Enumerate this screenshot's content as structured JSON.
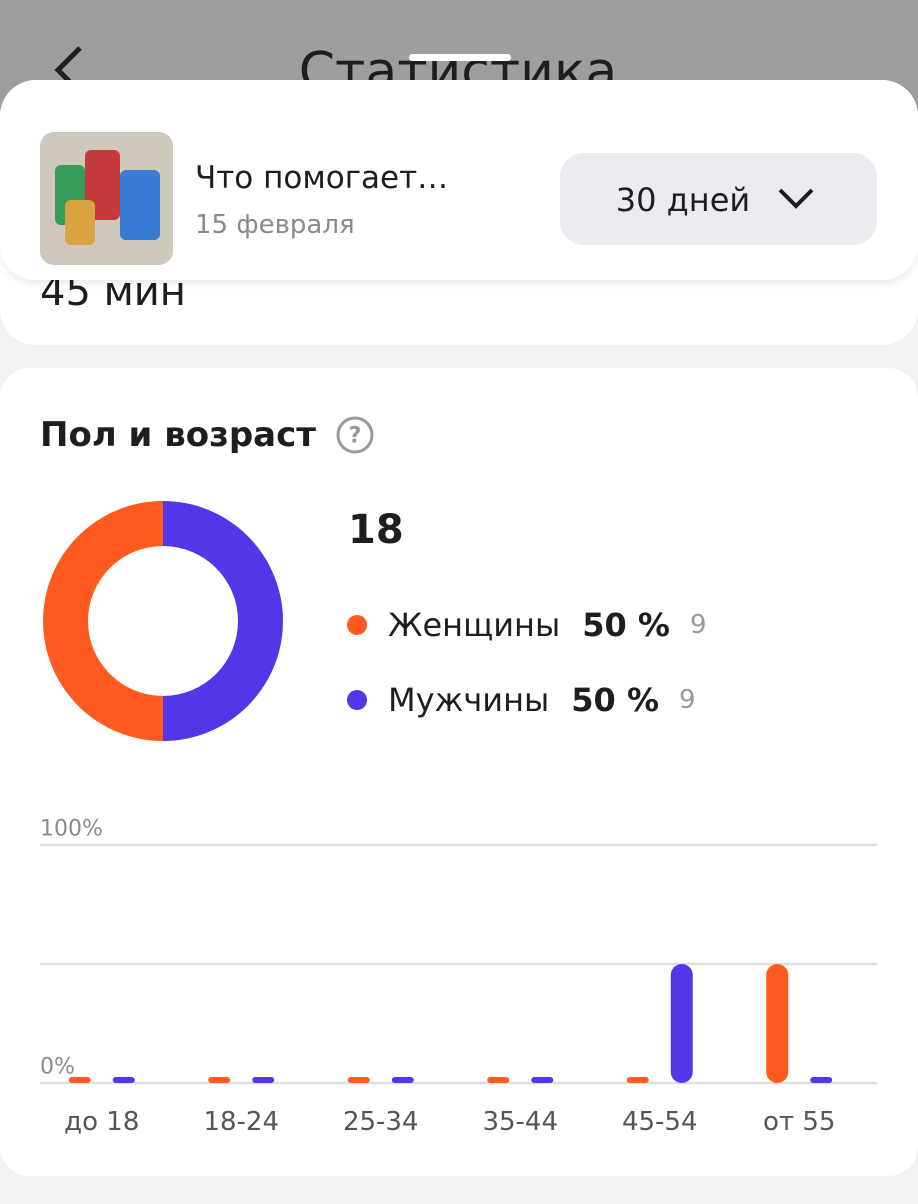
{
  "header": {
    "title": "Статистика"
  },
  "post": {
    "title": "Что помогает…",
    "date": "15 февраля"
  },
  "period": "30 дней",
  "previous_value": "45 мин",
  "chart_data": [
    {
      "type": "pie",
      "title": "Пол и возраст",
      "total": 18,
      "categories": [
        "Женщины",
        "Мужчины"
      ],
      "values": [
        50,
        50
      ],
      "value_labels": [
        "50 %",
        "50 %"
      ],
      "counts": [
        9,
        9
      ],
      "colors": [
        "#ff5a1f",
        "#5236e8"
      ]
    },
    {
      "type": "bar",
      "categories": [
        "до 18",
        "18-24",
        "25-34",
        "35-44",
        "45-54",
        "от 55"
      ],
      "series": [
        {
          "name": "Женщины",
          "color": "#ff5a1f",
          "values": [
            0,
            0,
            0,
            0,
            0,
            50
          ]
        },
        {
          "name": "Мужчины",
          "color": "#5236e8",
          "values": [
            0,
            0,
            0,
            0,
            50,
            0
          ]
        }
      ],
      "ylim": [
        0,
        100
      ],
      "yticks": [
        {
          "value": 0,
          "label": "0%"
        },
        {
          "value": 50,
          "label": null
        },
        {
          "value": 100,
          "label": "100%"
        }
      ],
      "grid": true
    }
  ]
}
